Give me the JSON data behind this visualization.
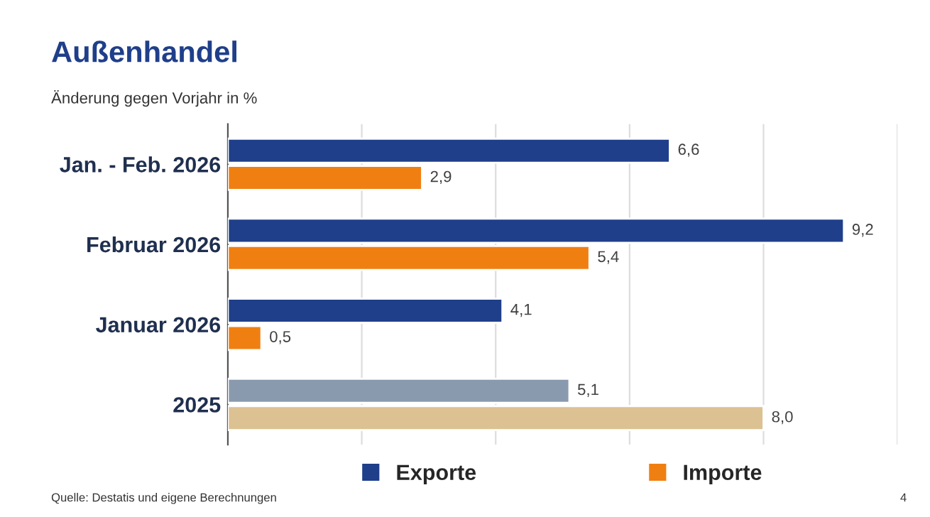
{
  "chart_data": {
    "type": "bar",
    "orientation": "horizontal",
    "title": "Außenhandel",
    "subtitle": "Änderung gegen Vorjahr in %",
    "categories": [
      "Jan. - Feb. 2026",
      "Februar 2026",
      "Januar 2026",
      "2025"
    ],
    "series": [
      {
        "name": "Exporte",
        "color": "#1f3f8a",
        "colors": [
          "#1f3f8a",
          "#1f3f8a",
          "#1f3f8a",
          "#8a9aae"
        ],
        "values": [
          6.6,
          9.2,
          4.1,
          5.1
        ],
        "value_labels": [
          "6,6",
          "9,2",
          "4,1",
          "5,1"
        ]
      },
      {
        "name": "Importe",
        "color": "#f07f12",
        "colors": [
          "#f07f12",
          "#f07f12",
          "#f07f12",
          "#dcc192"
        ],
        "values": [
          2.9,
          5.4,
          0.5,
          8.0
        ],
        "value_labels": [
          "2,9",
          "5,4",
          "0,5",
          "8,0"
        ]
      }
    ],
    "xlim": [
      0,
      10
    ],
    "xticks": [
      {
        "value": 0,
        "label": null
      },
      {
        "value": 2,
        "label": null
      },
      {
        "value": 4,
        "label": null
      },
      {
        "value": 6,
        "label": null
      },
      {
        "value": 8,
        "label": null
      },
      {
        "value": 10,
        "label": null
      }
    ],
    "tick_labels": "y",
    "grid": "x",
    "legend": "bottom",
    "annotations": [
      "Quelle: Destatis und eigene Berechnungen",
      "4"
    ]
  }
}
